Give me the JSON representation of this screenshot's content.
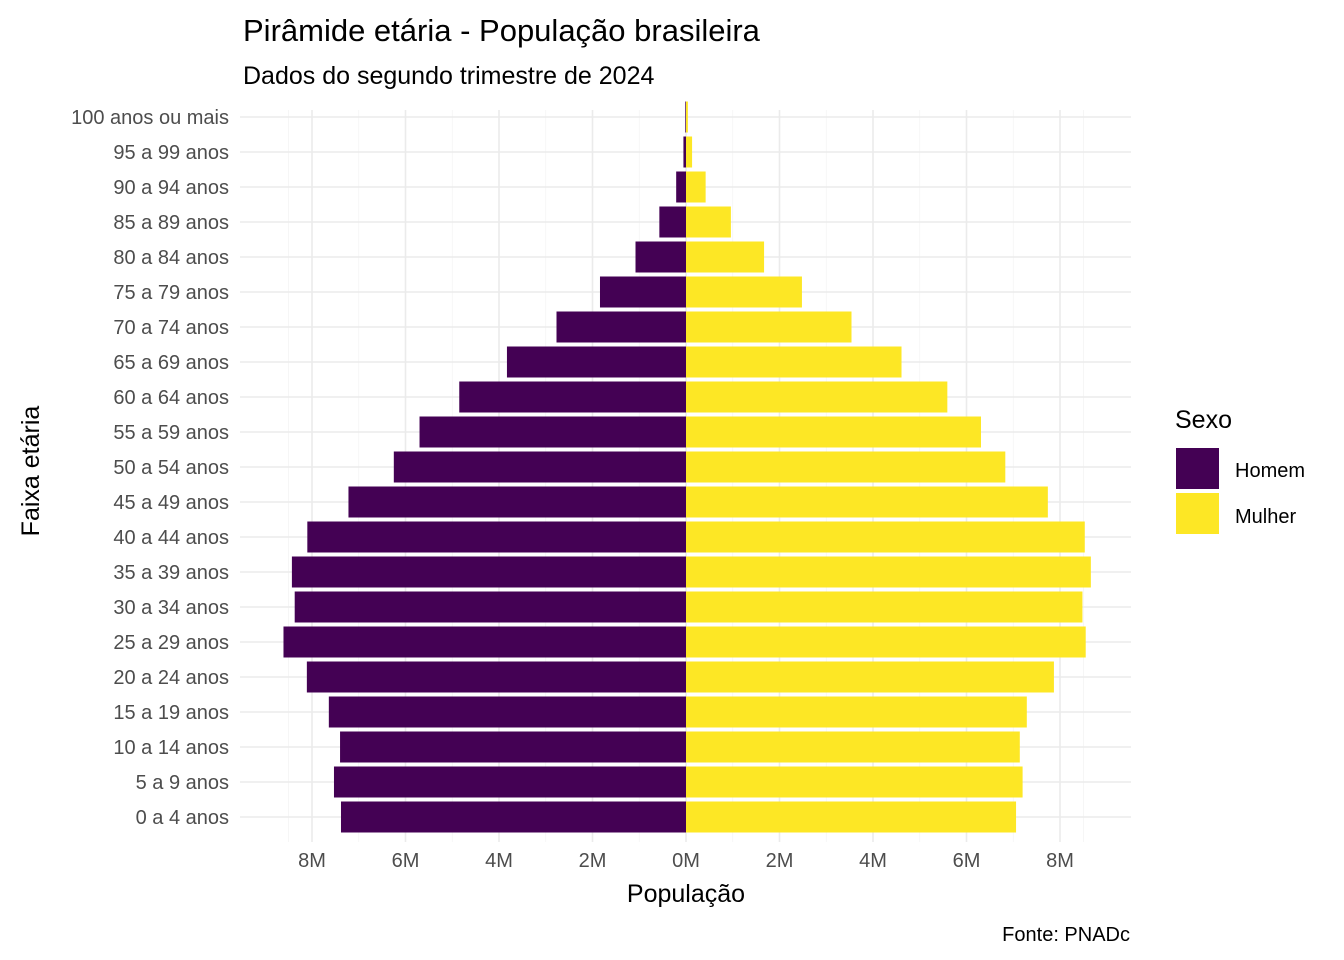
{
  "chart_data": {
    "type": "bar",
    "orientation": "horizontal-pyramid",
    "title": "Pirâmide etária - População brasileira",
    "subtitle": "Dados do segundo trimestre de 2024",
    "xlabel": "População",
    "ylabel": "Faixa etária",
    "caption": "Fonte: PNADc",
    "legend_title": "Sexo",
    "legend_position": "right",
    "xlim": [
      -9000000,
      9000000
    ],
    "x_ticks": [
      -8000000,
      -6000000,
      -4000000,
      -2000000,
      0,
      2000000,
      4000000,
      6000000,
      8000000
    ],
    "x_tick_labels": [
      "8M",
      "6M",
      "4M",
      "2M",
      "0M",
      "2M",
      "4M",
      "6M",
      "8M"
    ],
    "categories": [
      "0 a 4 anos",
      "5 a 9 anos",
      "10 a 14 anos",
      "15 a 19 anos",
      "20 a 24 anos",
      "25 a 29 anos",
      "30 a 34 anos",
      "35 a 39 anos",
      "40 a 44 anos",
      "45 a 49 anos",
      "50 a 54 anos",
      "55 a 59 anos",
      "60 a 64 anos",
      "65 a 69 anos",
      "70 a 74 anos",
      "75 a 79 anos",
      "80 a 84 anos",
      "85 a 89 anos",
      "90 a 94 anos",
      "95 a 99 anos",
      "100 anos ou mais"
    ],
    "series": [
      {
        "name": "Homem",
        "color": "#440154",
        "values": [
          7380000,
          7530000,
          7400000,
          7640000,
          8110000,
          8610000,
          8370000,
          8430000,
          8100000,
          7220000,
          6250000,
          5700000,
          4850000,
          3830000,
          2770000,
          1840000,
          1080000,
          570000,
          210000,
          55000,
          15000
        ]
      },
      {
        "name": "Mulher",
        "color": "#fde725",
        "values": [
          7060000,
          7200000,
          7140000,
          7290000,
          7870000,
          8550000,
          8480000,
          8660000,
          8530000,
          7740000,
          6830000,
          6310000,
          5590000,
          4610000,
          3540000,
          2480000,
          1670000,
          960000,
          420000,
          130000,
          40000
        ]
      }
    ],
    "grid": true
  }
}
